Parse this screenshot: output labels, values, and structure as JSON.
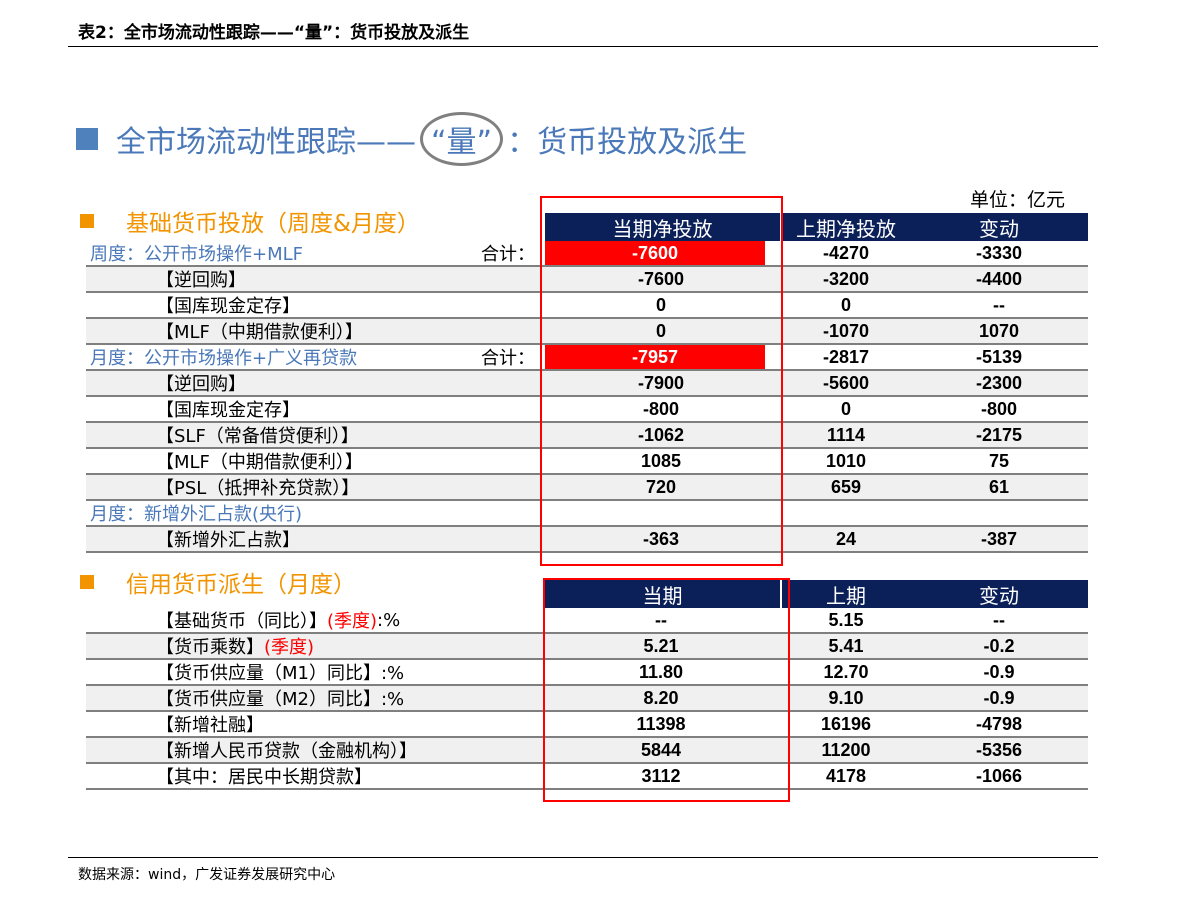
{
  "page_title": "表2：全市场流动性跟踪——“量”：货币投放及派生",
  "slide_title": {
    "before": "全市场流动性跟踪——",
    "circled": "“量”",
    "after": "：货币投放及派生"
  },
  "unit": "单位：亿元",
  "section1": {
    "title": "基础货币投放（周度&月度）",
    "headers": [
      "当期净投放",
      "上期净投放",
      "变动"
    ],
    "rows": [
      {
        "label": "周度：公开市场操作+MLF",
        "group": true,
        "sum": "合计：",
        "v": [
          "-7600",
          "-4270",
          "-3330"
        ],
        "highlight": true
      },
      {
        "label": "【逆回购】",
        "v": [
          "-7600",
          "-3200",
          "-4400"
        ]
      },
      {
        "label": "【国库现金定存】",
        "v": [
          "0",
          "0",
          "--"
        ]
      },
      {
        "label": "【MLF（中期借款便利）】",
        "v": [
          "0",
          "-1070",
          "1070"
        ]
      },
      {
        "label": "月度：公开市场操作+广义再贷款",
        "group": true,
        "sum": "合计：",
        "v": [
          "-7957",
          "-2817",
          "-5139"
        ],
        "highlight": true
      },
      {
        "label": "【逆回购】",
        "v": [
          "-7900",
          "-5600",
          "-2300"
        ]
      },
      {
        "label": "【国库现金定存】",
        "v": [
          "-800",
          "0",
          "-800"
        ]
      },
      {
        "label": "【SLF（常备借贷便利）】",
        "v": [
          "-1062",
          "1114",
          "-2175"
        ]
      },
      {
        "label": "【MLF（中期借款便利）】",
        "v": [
          "1085",
          "1010",
          "75"
        ]
      },
      {
        "label": "【PSL（抵押补充贷款）】",
        "v": [
          "720",
          "659",
          "61"
        ]
      },
      {
        "label": "月度：新增外汇占款(央行)",
        "group": true,
        "v": [
          "",
          "",
          ""
        ]
      },
      {
        "label": "【新增外汇占款】",
        "v": [
          "-363",
          "24",
          "-387"
        ]
      }
    ]
  },
  "section2": {
    "title": "信用货币派生（月度）",
    "headers": [
      "当期",
      "上期",
      "变动"
    ],
    "rows": [
      {
        "label": "【基础货币（同比）】",
        "note": "(季度)",
        "suffix": ":%",
        "v": [
          "--",
          "5.15",
          "--"
        ]
      },
      {
        "label": "【货币乘数】",
        "note": "(季度)",
        "suffix": "",
        "v": [
          "5.21",
          "5.41",
          "-0.2"
        ]
      },
      {
        "label": "【货币供应量（M1）同比】:%",
        "v": [
          "11.80",
          "12.70",
          "-0.9"
        ]
      },
      {
        "label": "【货币供应量（M2）同比】:%",
        "v": [
          "8.20",
          "9.10",
          "-0.9"
        ]
      },
      {
        "label": "【新增社融】",
        "v": [
          "11398",
          "16196",
          "-4798"
        ]
      },
      {
        "label": "【新增人民币贷款（金融机构）】",
        "v": [
          "5844",
          "11200",
          "-5356"
        ]
      },
      {
        "label": "【其中：居民中长期贷款】",
        "v": [
          "3112",
          "4178",
          "-1066"
        ]
      }
    ]
  },
  "source": "数据来源：wind，广发证券发展研究中心",
  "colors": {
    "header_bg": "#0b2058",
    "highlight": "#ff0000",
    "title_blue": "#4a78b8",
    "section_orange": "#f29400"
  }
}
